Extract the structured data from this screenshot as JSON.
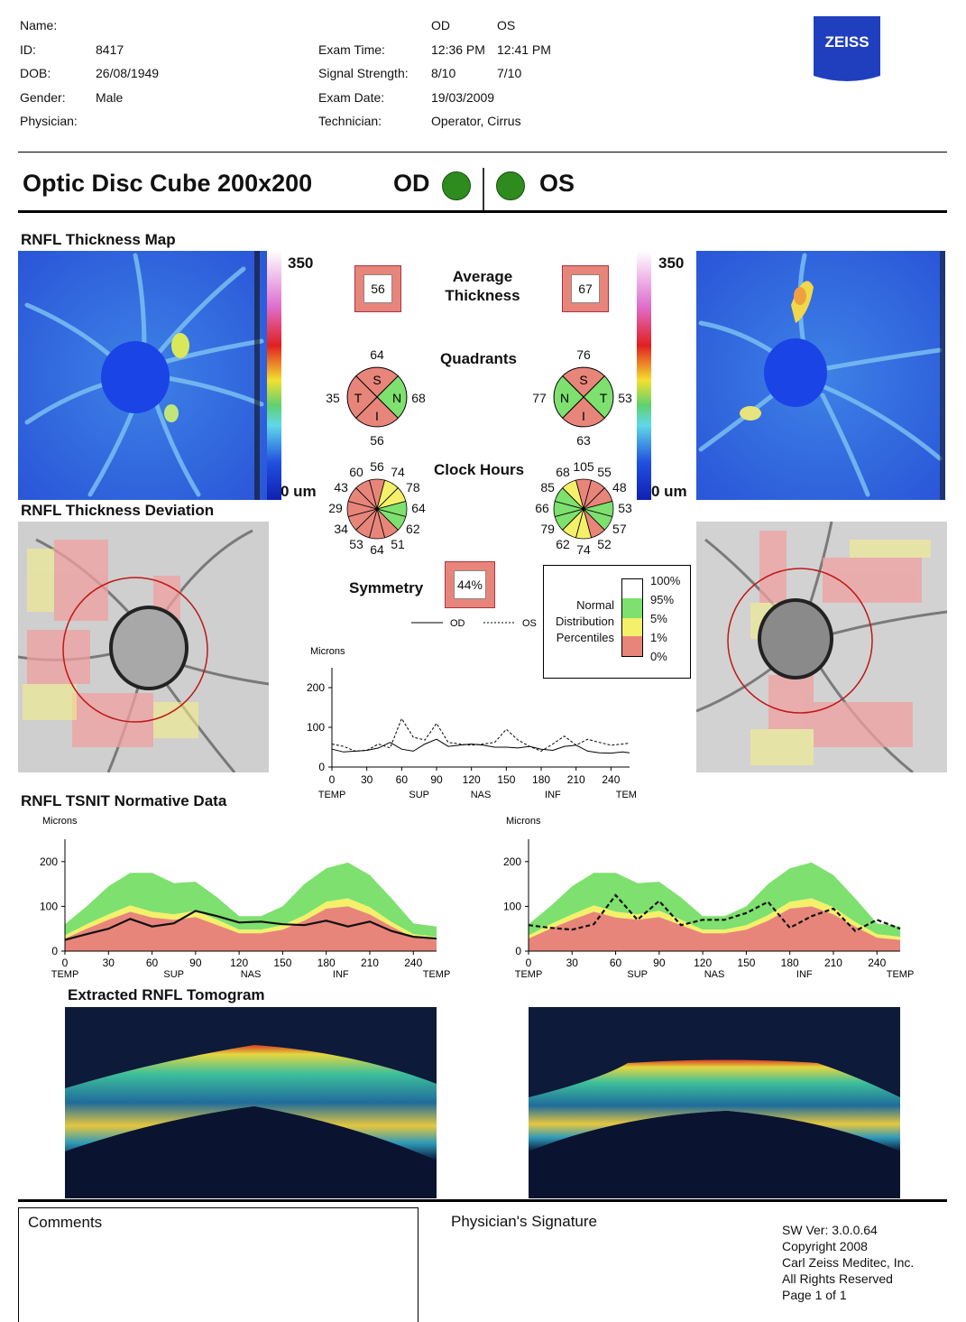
{
  "header": {
    "name_label": "Name:",
    "id_label": "ID:",
    "id_value": "8417",
    "dob_label": "DOB:",
    "dob_value": "26/08/1949",
    "gender_label": "Gender:",
    "gender_value": "Male",
    "physician_label": "Physician:",
    "od": "OD",
    "os": "OS",
    "exam_time_label": "Exam Time:",
    "exam_time_od": "12:36 PM",
    "exam_time_os": "12:41 PM",
    "signal_label": "Signal Strength:",
    "signal_od": "8/10",
    "signal_os": "7/10",
    "exam_date_label": "Exam Date:",
    "exam_date": "19/03/2009",
    "technician_label": "Technician:",
    "technician": "Operator, Cirrus",
    "logo": "ZEISS"
  },
  "title": {
    "main": "Optic Disc Cube 200x200",
    "od": "OD",
    "os": "OS",
    "status_color": "#2e8b1e"
  },
  "sections": {
    "thickness_map": "RNFL Thickness Map",
    "deviation": "RNFL Thickness Deviation",
    "tsnit": "RNFL TSNIT Normative Data",
    "tomogram": "Extracted RNFL Tomogram"
  },
  "scale": {
    "max": "350",
    "min": "0 um"
  },
  "center": {
    "average_label_1": "Average",
    "average_label_2": "Thickness",
    "avg_od": "56",
    "avg_os": "67",
    "quadrants_label": "Quadrants",
    "clock_label": "Clock Hours",
    "symmetry_label": "Symmetry",
    "symmetry_value": "44%"
  },
  "quadrants_od": {
    "s": "64",
    "t": "35",
    "n": "68",
    "i": "56"
  },
  "quadrants_os": {
    "s": "76",
    "n": "77",
    "t": "53",
    "i": "63"
  },
  "quadrant_letters": {
    "s": "S",
    "t": "T",
    "n": "N",
    "i": "I"
  },
  "clock_od": [
    "56",
    "74",
    "78",
    "64",
    "62",
    "51",
    "64",
    "53",
    "34",
    "29",
    "43",
    "60"
  ],
  "clock_os": [
    "105",
    "55",
    "48",
    "53",
    "57",
    "52",
    "74",
    "62",
    "79",
    "66",
    "85",
    "68"
  ],
  "legend": {
    "lines": [
      "Normal",
      "Distribution",
      "Percentiles"
    ],
    "pcts": [
      "100%",
      "95%",
      "5%",
      "1%",
      "0%"
    ],
    "colors": {
      "white": "#ffffff",
      "green": "#7ee06e",
      "yellow": "#f4f06a",
      "red": "#e8857a"
    }
  },
  "sym_chart": {
    "legend_od": "OD",
    "legend_os": "OS",
    "ylabel": "Microns",
    "yticks": [
      "200",
      "100",
      "0"
    ],
    "xticks": [
      "0",
      "30",
      "60",
      "90",
      "120",
      "150",
      "180",
      "210",
      "240"
    ],
    "xlabels": [
      "TEMP",
      "SUP",
      "NAS",
      "INF",
      "TEMP"
    ]
  },
  "tsnit": {
    "ylabel": "Microns",
    "yticks": [
      "200",
      "100",
      "0"
    ],
    "xticks": [
      "0",
      "30",
      "60",
      "90",
      "120",
      "150",
      "180",
      "210",
      "240"
    ],
    "xlabels": [
      "TEMP",
      "SUP",
      "NAS",
      "INF",
      "TEMP"
    ]
  },
  "chart_data": [
    {
      "type": "line",
      "title": "Symmetry",
      "xlabel": "",
      "ylabel": "Microns",
      "x": [
        0,
        10,
        20,
        30,
        40,
        50,
        60,
        70,
        80,
        90,
        100,
        110,
        120,
        130,
        140,
        150,
        160,
        170,
        180,
        190,
        200,
        210,
        220,
        230,
        240,
        250,
        256
      ],
      "series": [
        {
          "name": "OD",
          "values": [
            45,
            38,
            40,
            42,
            48,
            62,
            45,
            40,
            58,
            70,
            52,
            55,
            58,
            55,
            50,
            50,
            48,
            52,
            45,
            42,
            52,
            55,
            40,
            36,
            35,
            38,
            36
          ]
        },
        {
          "name": "OS",
          "values": [
            58,
            52,
            40,
            42,
            58,
            48,
            122,
            75,
            68,
            110,
            62,
            58,
            55,
            58,
            62,
            95,
            68,
            52,
            40,
            58,
            78,
            55,
            70,
            62,
            55,
            58,
            60
          ]
        }
      ],
      "ylim": [
        0,
        250
      ],
      "xlim": [
        0,
        256
      ]
    },
    {
      "type": "area",
      "title": "RNFL TSNIT Normative Data OD",
      "ylabel": "Microns",
      "x": [
        0,
        15,
        30,
        45,
        60,
        75,
        90,
        105,
        120,
        135,
        150,
        165,
        180,
        195,
        210,
        225,
        240,
        256
      ],
      "series": [
        {
          "name": "OD",
          "values": [
            25,
            38,
            50,
            72,
            55,
            62,
            90,
            78,
            64,
            66,
            60,
            58,
            68,
            55,
            66,
            45,
            32,
            28
          ]
        },
        {
          "name": "95%",
          "values": [
            60,
            100,
            145,
            175,
            175,
            152,
            155,
            120,
            78,
            78,
            100,
            150,
            185,
            198,
            170,
            118,
            62,
            55
          ]
        },
        {
          "name": "5%",
          "values": [
            35,
            60,
            82,
            102,
            88,
            82,
            90,
            70,
            48,
            48,
            58,
            80,
            110,
            118,
            98,
            65,
            38,
            32
          ]
        },
        {
          "name": "1%",
          "values": [
            28,
            50,
            70,
            88,
            75,
            70,
            76,
            58,
            40,
            40,
            48,
            68,
            95,
            100,
            82,
            55,
            30,
            25
          ]
        }
      ],
      "ylim": [
        0,
        250
      ],
      "xlim": [
        0,
        256
      ]
    },
    {
      "type": "area",
      "title": "RNFL TSNIT Normative Data OS",
      "ylabel": "Microns",
      "x": [
        0,
        15,
        30,
        45,
        60,
        75,
        90,
        105,
        120,
        135,
        150,
        165,
        180,
        195,
        210,
        225,
        240,
        256
      ],
      "series": [
        {
          "name": "OS",
          "values": [
            58,
            52,
            48,
            60,
            125,
            70,
            112,
            58,
            70,
            70,
            85,
            110,
            52,
            78,
            95,
            45,
            70,
            50
          ]
        },
        {
          "name": "95%",
          "values": [
            60,
            100,
            145,
            175,
            175,
            152,
            155,
            120,
            78,
            78,
            100,
            150,
            185,
            198,
            170,
            118,
            62,
            55
          ]
        },
        {
          "name": "5%",
          "values": [
            35,
            60,
            82,
            102,
            88,
            82,
            90,
            70,
            48,
            48,
            58,
            80,
            110,
            118,
            98,
            65,
            38,
            32
          ]
        },
        {
          "name": "1%",
          "values": [
            28,
            50,
            70,
            88,
            75,
            70,
            76,
            58,
            40,
            40,
            48,
            68,
            95,
            100,
            82,
            55,
            30,
            25
          ]
        }
      ],
      "ylim": [
        0,
        250
      ],
      "xlim": [
        0,
        256
      ]
    }
  ],
  "footer": {
    "comments": "Comments",
    "signature": "Physician's Signature",
    "sw": "SW Ver: 3.0.0.64",
    "copyright": "Copyright 2008",
    "company": "Carl Zeiss Meditec, Inc.",
    "rights": "All Rights Reserved",
    "page": "Page 1 of 1"
  }
}
